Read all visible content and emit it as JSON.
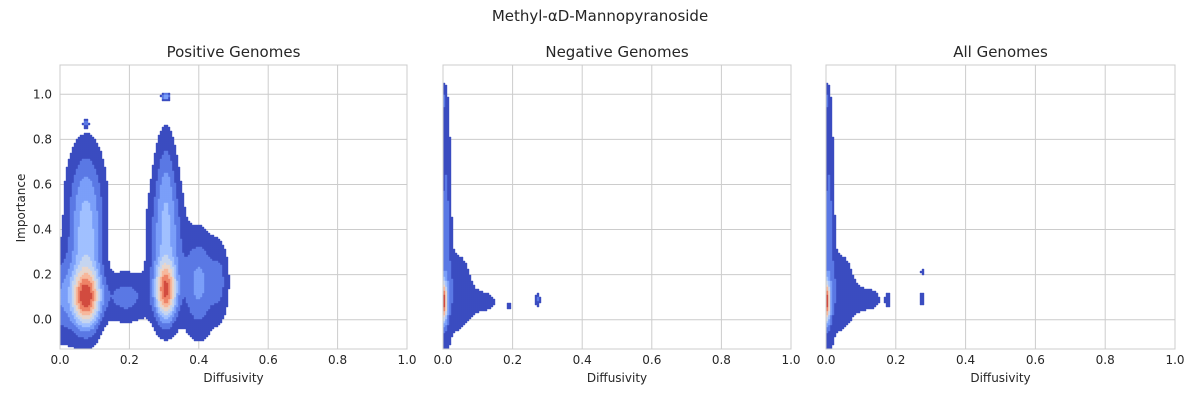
{
  "suptitle": "Methyl-αD-Mannopyranoside",
  "chart_data": [
    {
      "type": "density_contour",
      "title": "Positive Genomes",
      "xlabel": "Diffusivity",
      "ylabel": "Importance",
      "xlim": [
        0.0,
        1.0
      ],
      "ylim": [
        -0.13,
        1.13
      ],
      "xticks": [
        "0.0",
        "0.2",
        "0.4",
        "0.6",
        "0.8",
        "1.0"
      ],
      "yticks": [
        "0.0",
        "0.2",
        "0.4",
        "0.6",
        "0.8",
        "1.0"
      ],
      "grid": true,
      "colormap": "coolwarm",
      "peaks": [
        {
          "x": 0.075,
          "y": 0.1,
          "relative_density": 1.0
        },
        {
          "x": 0.305,
          "y": 0.13,
          "relative_density": 0.95
        }
      ],
      "outlier_blobs": [
        {
          "x": 0.075,
          "y": 0.87
        },
        {
          "x": 0.305,
          "y": 0.99
        }
      ]
    },
    {
      "type": "density_contour",
      "title": "Negative Genomes",
      "xlabel": "Diffusivity",
      "ylabel": "",
      "xlim": [
        0.0,
        1.0
      ],
      "ylim": [
        -0.13,
        1.13
      ],
      "xticks": [
        "0.0",
        "0.2",
        "0.4",
        "0.6",
        "0.8",
        "1.0"
      ],
      "grid": true,
      "colormap": "coolwarm",
      "peaks": [
        {
          "x": 0.0,
          "y": 0.08,
          "relative_density": 1.0
        }
      ],
      "outlier_blobs": [
        {
          "x": 0.19,
          "y": 0.06
        },
        {
          "x": 0.27,
          "y": 0.09
        }
      ]
    },
    {
      "type": "density_contour",
      "title": "All Genomes",
      "xlabel": "Diffusivity",
      "ylabel": "",
      "xlim": [
        0.0,
        1.0
      ],
      "ylim": [
        -0.13,
        1.13
      ],
      "xticks": [
        "0.0",
        "0.2",
        "0.4",
        "0.6",
        "0.8",
        "1.0"
      ],
      "grid": true,
      "colormap": "coolwarm",
      "peaks": [
        {
          "x": 0.0,
          "y": 0.08,
          "relative_density": 1.0
        }
      ],
      "outlier_blobs": [
        {
          "x": 0.18,
          "y": 0.09
        },
        {
          "x": 0.275,
          "y": 0.09
        },
        {
          "x": 0.275,
          "y": 0.21
        }
      ]
    }
  ],
  "colors": {
    "levels": [
      "#3b4cc0",
      "#5a78e4",
      "#7b9ff9",
      "#a1c0ff",
      "#c5d5f0",
      "#e8d6cc",
      "#f7b89c",
      "#ee8468",
      "#d24b40"
    ]
  }
}
